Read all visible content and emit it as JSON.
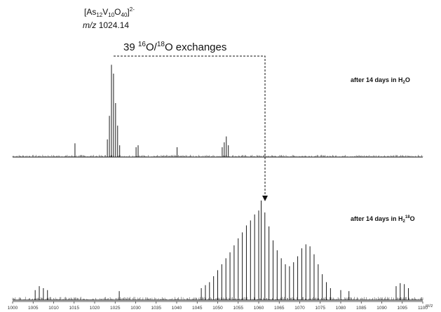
{
  "chart_data": {
    "type": "bar",
    "xlim": [
      1000,
      1100
    ],
    "x_ticks": [
      1000,
      1005,
      1010,
      1015,
      1020,
      1025,
      1030,
      1035,
      1040,
      1045,
      1050,
      1055,
      1060,
      1065,
      1070,
      1075,
      1080,
      1085,
      1090,
      1095,
      1100
    ],
    "x_unit": "m/z",
    "grid": false,
    "legend": "none",
    "title_compound": {
      "prefix": "[As",
      "as_sub": "12",
      "v": "V",
      "v_sub": "10",
      "o": "O",
      "o_sub": "40",
      "close": "]",
      "charge": "2-"
    },
    "mz_label": "m/z",
    "mz_value": "1024.14",
    "exchange_note": {
      "count": "39",
      "iso16": "16",
      "o1": "O/",
      "iso18": "18",
      "o2": "O exchanges"
    },
    "series": [
      {
        "name_prefix": "after 14 days in H",
        "name_sub": "2",
        "name_sup": "",
        "name_suffix": "O",
        "peaks": [
          {
            "x": 1015.2,
            "y": 0.14
          },
          {
            "x": 1023.1,
            "y": 0.18
          },
          {
            "x": 1023.6,
            "y": 0.42
          },
          {
            "x": 1024.1,
            "y": 0.94
          },
          {
            "x": 1024.6,
            "y": 0.85
          },
          {
            "x": 1025.1,
            "y": 0.55
          },
          {
            "x": 1025.6,
            "y": 0.32
          },
          {
            "x": 1026.1,
            "y": 0.12
          },
          {
            "x": 1030.1,
            "y": 0.1
          },
          {
            "x": 1030.6,
            "y": 0.12
          },
          {
            "x": 1040.1,
            "y": 0.1
          },
          {
            "x": 1051.1,
            "y": 0.1
          },
          {
            "x": 1051.6,
            "y": 0.15
          },
          {
            "x": 1052.1,
            "y": 0.21
          },
          {
            "x": 1052.6,
            "y": 0.12
          }
        ]
      },
      {
        "name_prefix": "after 14 days in H",
        "name_sub": "2",
        "name_sup": "18",
        "name_suffix": "O",
        "peaks": [
          {
            "x": 1005.5,
            "y": 0.1
          },
          {
            "x": 1006.5,
            "y": 0.14
          },
          {
            "x": 1007.5,
            "y": 0.12
          },
          {
            "x": 1008.5,
            "y": 0.1
          },
          {
            "x": 1026.0,
            "y": 0.09
          },
          {
            "x": 1046.0,
            "y": 0.12
          },
          {
            "x": 1047.0,
            "y": 0.15
          },
          {
            "x": 1048.0,
            "y": 0.18
          },
          {
            "x": 1049.0,
            "y": 0.24
          },
          {
            "x": 1050.0,
            "y": 0.3
          },
          {
            "x": 1051.0,
            "y": 0.36
          },
          {
            "x": 1052.0,
            "y": 0.42
          },
          {
            "x": 1053.0,
            "y": 0.48
          },
          {
            "x": 1054.0,
            "y": 0.55
          },
          {
            "x": 1055.0,
            "y": 0.62
          },
          {
            "x": 1056.0,
            "y": 0.68
          },
          {
            "x": 1057.0,
            "y": 0.75
          },
          {
            "x": 1058.0,
            "y": 0.8
          },
          {
            "x": 1059.0,
            "y": 0.86
          },
          {
            "x": 1060.0,
            "y": 0.9
          },
          {
            "x": 1060.6,
            "y": 1.0
          },
          {
            "x": 1061.5,
            "y": 0.88
          },
          {
            "x": 1062.5,
            "y": 0.74
          },
          {
            "x": 1063.5,
            "y": 0.6
          },
          {
            "x": 1064.5,
            "y": 0.5
          },
          {
            "x": 1065.5,
            "y": 0.42
          },
          {
            "x": 1066.5,
            "y": 0.36
          },
          {
            "x": 1067.5,
            "y": 0.34
          },
          {
            "x": 1068.5,
            "y": 0.38
          },
          {
            "x": 1069.5,
            "y": 0.44
          },
          {
            "x": 1070.5,
            "y": 0.52
          },
          {
            "x": 1071.5,
            "y": 0.56
          },
          {
            "x": 1072.5,
            "y": 0.54
          },
          {
            "x": 1073.5,
            "y": 0.46
          },
          {
            "x": 1074.5,
            "y": 0.36
          },
          {
            "x": 1075.5,
            "y": 0.26
          },
          {
            "x": 1076.5,
            "y": 0.18
          },
          {
            "x": 1077.5,
            "y": 0.12
          },
          {
            "x": 1080.0,
            "y": 0.1
          },
          {
            "x": 1082.0,
            "y": 0.09
          },
          {
            "x": 1093.5,
            "y": 0.14
          },
          {
            "x": 1094.5,
            "y": 0.17
          },
          {
            "x": 1095.5,
            "y": 0.16
          },
          {
            "x": 1096.5,
            "y": 0.12
          }
        ]
      }
    ]
  }
}
